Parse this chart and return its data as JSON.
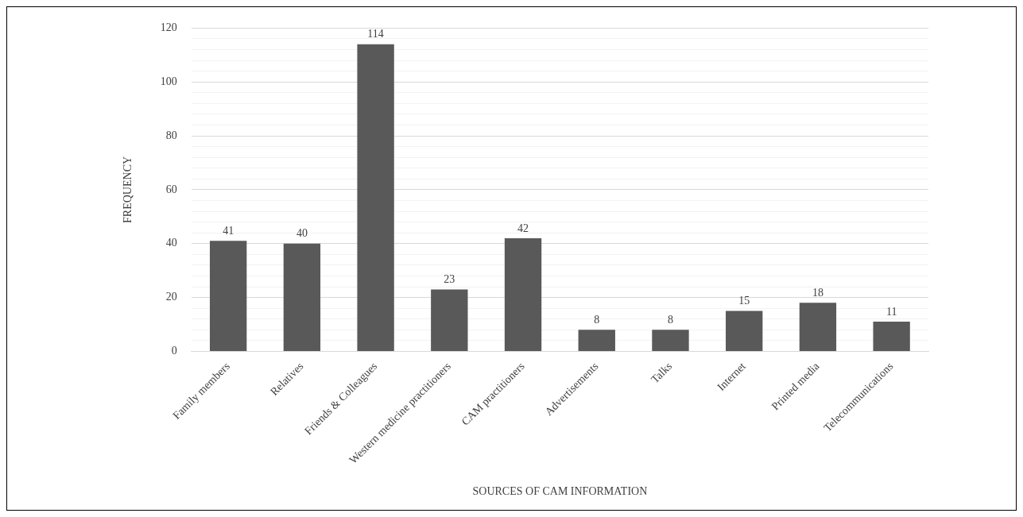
{
  "chart_data": {
    "type": "bar",
    "xlabel": "SOURCES OF CAM INFORMATION",
    "ylabel": "FREQUENCY",
    "categories": [
      "Family members",
      "Relatives",
      "Friends & Colleagues",
      "Western medicine practitioners",
      "CAM practitioners",
      "Advertisements",
      "Talks",
      "Internet",
      "Printed media",
      "Telecommunications"
    ],
    "values": [
      41,
      40,
      114,
      23,
      42,
      8,
      8,
      15,
      18,
      11
    ],
    "color": "#595959",
    "ylim": [
      0,
      120
    ],
    "yticks": [
      0,
      {
        "value": 4,
        "label": null
      },
      {
        "value": 8,
        "label": null
      },
      {
        "value": 12,
        "label": null
      },
      {
        "value": 16,
        "label": null
      },
      20,
      {
        "value": 24,
        "label": null
      },
      {
        "value": 28,
        "label": null
      },
      {
        "value": 32,
        "label": null
      },
      {
        "value": 36,
        "label": null
      },
      40,
      {
        "value": 44,
        "label": null
      },
      {
        "value": 48,
        "label": null
      },
      {
        "value": 52,
        "label": null
      },
      {
        "value": 56,
        "label": null
      },
      60,
      {
        "value": 64,
        "label": null
      },
      {
        "value": 68,
        "label": null
      },
      {
        "value": 72,
        "label": null
      },
      {
        "value": 76,
        "label": null
      },
      80,
      {
        "value": 84,
        "label": null
      },
      {
        "value": 88,
        "label": null
      },
      {
        "value": 92,
        "label": null
      },
      {
        "value": 96,
        "label": null
      },
      100,
      {
        "value": 104,
        "label": null
      },
      {
        "value": 108,
        "label": null
      },
      {
        "value": 112,
        "label": null
      },
      {
        "value": 116,
        "label": null
      },
      120
    ],
    "grid": "y",
    "data_labels": true,
    "legend": false
  }
}
